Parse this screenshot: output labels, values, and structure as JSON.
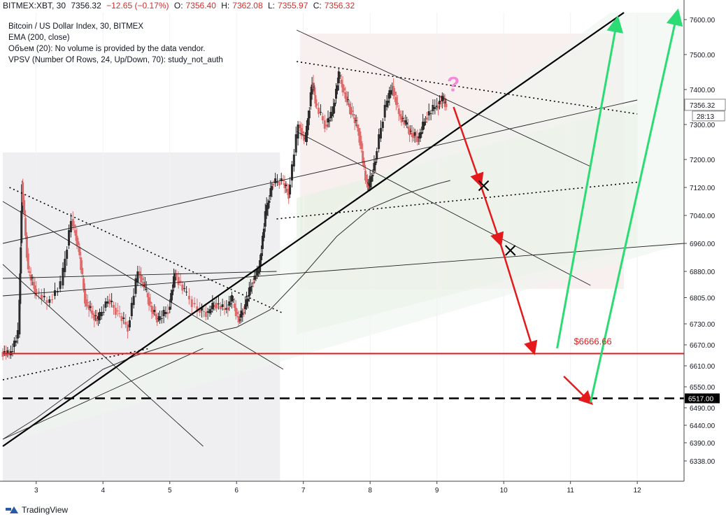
{
  "header": {
    "symbol": "BITMEX:XBT, 30",
    "last": "7356.32",
    "change": "−12.65 (−0.17%)",
    "open_label": "O:",
    "open": "7356.40",
    "high_label": "H:",
    "high": "7362.08",
    "low_label": "L:",
    "low": "7355.97",
    "close_label": "C:",
    "close": "7356.32"
  },
  "legend": {
    "title": "Bitcoin / US Dollar Index, 30, BITMEX",
    "ema": "EMA (200, close)",
    "volume": "Объем (20): No volume is provided by the data vendor.",
    "vpsv": "VPSV (Number Of Rows, 24, Up/Down, 70): study_not_auth"
  },
  "footer": {
    "brand": "TradingView"
  },
  "colors": {
    "up": "#2b2b2b",
    "down": "#e06a6a",
    "red": "#e3191c",
    "green": "#2bdc74",
    "black": "#000000"
  },
  "chart_data": {
    "type": "line",
    "x_ticks": [
      3,
      4,
      5,
      6,
      7,
      8,
      9,
      10,
      11,
      12
    ],
    "y_ticks": [
      "7600.00",
      "7500.00",
      "7400.00",
      "7300.00",
      "7200.00",
      "7120.00",
      "7040.00",
      "6960.00",
      "6880.00",
      "6805.00",
      "6730.00",
      "6670.00",
      "6610.00",
      "6550.00",
      "6490.00",
      "6440.00",
      "6390.00",
      "6338.00"
    ],
    "price_tag": "7356.32",
    "timer_tag": "28:13",
    "level_tag": "6517.00",
    "level_label": "$6666.66",
    "support_level": 6645,
    "target_level": 6517,
    "annotation": "?",
    "x_range": [
      2.5,
      12.7
    ],
    "y_range": [
      6280,
      7620
    ],
    "price": {
      "x": [
        2.5,
        2.62,
        2.75,
        2.8,
        2.9,
        3.0,
        3.2,
        3.4,
        3.55,
        3.65,
        3.75,
        3.85,
        3.95,
        4.1,
        4.25,
        4.4,
        4.55,
        4.65,
        4.75,
        4.85,
        5.0,
        5.1,
        5.25,
        5.45,
        5.6,
        5.7,
        5.85,
        5.95,
        6.05,
        6.15,
        6.25,
        6.35,
        6.45,
        6.55,
        6.7,
        6.8,
        6.95,
        7.05,
        7.15,
        7.2,
        7.35,
        7.45,
        7.55,
        7.65,
        7.75,
        7.85,
        7.95,
        8.0,
        8.1,
        8.25,
        8.35,
        8.45,
        8.55,
        8.65,
        8.75,
        8.85,
        9.0,
        9.1,
        9.15
      ],
      "y": [
        6650,
        6640,
        6700,
        7135,
        6880,
        6830,
        6790,
        6840,
        7030,
        6950,
        6800,
        6760,
        6740,
        6800,
        6760,
        6720,
        6880,
        6830,
        6770,
        6740,
        6770,
        6875,
        6820,
        6770,
        6760,
        6790,
        6770,
        6800,
        6740,
        6780,
        6850,
        6880,
        7040,
        7130,
        7140,
        7100,
        7300,
        7250,
        7420,
        7360,
        7300,
        7330,
        7440,
        7380,
        7330,
        7280,
        7140,
        7120,
        7200,
        7350,
        7410,
        7330,
        7300,
        7270,
        7260,
        7320,
        7350,
        7370,
        7356
      ]
    },
    "ema_200": {
      "x": [
        2.5,
        3.0,
        3.5,
        4.0,
        4.5,
        5.0,
        5.5,
        6.0,
        6.5,
        7.0,
        7.5,
        8.0,
        8.5,
        9.0,
        9.2
      ],
      "y": [
        6400,
        6460,
        6530,
        6600,
        6640,
        6670,
        6700,
        6720,
        6770,
        6870,
        6980,
        7060,
        7100,
        7130,
        7140
      ]
    },
    "trend_lines": [
      {
        "name": "ascending-support",
        "style": "solid-thick",
        "x": [
          2.5,
          11.8
        ],
        "y": [
          6380,
          7620
        ]
      },
      {
        "name": "upper-descending",
        "style": "dotted",
        "x": [
          6.9,
          12.0
        ],
        "y": [
          7480,
          7330
        ]
      },
      {
        "name": "mid-dotted",
        "style": "dotted",
        "x": [
          6.6,
          12.0
        ],
        "y": [
          7030,
          7135
        ]
      },
      {
        "name": "left-dotted",
        "style": "dotted",
        "x": [
          2.5,
          4.7
        ],
        "y": [
          6570,
          6660
        ]
      },
      {
        "name": "left-descending-dotted",
        "style": "dotted",
        "x": [
          2.6,
          6.7
        ],
        "y": [
          7120,
          6760
        ]
      }
    ],
    "projection_red": [
      [
        9.25,
        7350
      ],
      [
        9.65,
        7130
      ],
      [
        9.95,
        6960
      ],
      [
        10.45,
        6650
      ],
      [
        10.9,
        6580
      ],
      [
        11.3,
        6505
      ]
    ],
    "projection_green": [
      [
        10.8,
        6660
      ],
      [
        11.7,
        7600
      ],
      [
        11.3,
        6505
      ],
      [
        12.6,
        7620
      ]
    ],
    "cross_marks": [
      [
        9.7,
        7125
      ],
      [
        10.1,
        6940
      ]
    ]
  }
}
